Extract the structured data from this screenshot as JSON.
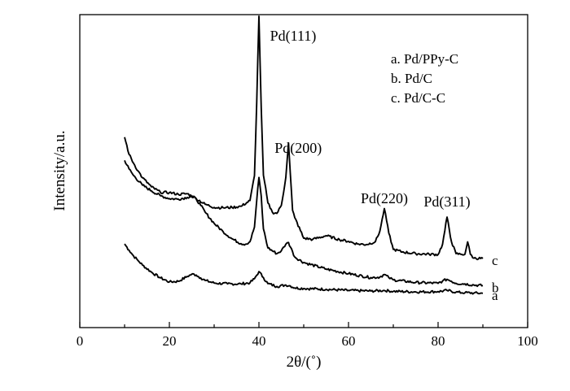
{
  "chart_data": {
    "type": "line",
    "xlabel": "2θ/(˚)",
    "ylabel": "Intensity/a.u.",
    "xlim": [
      0,
      100
    ],
    "ylim": [
      0,
      100
    ],
    "y_axis_ticks": "none",
    "x_ticks": [
      "0",
      "20",
      "40",
      "60",
      "80",
      "100"
    ],
    "legend": {
      "placement": "top-right",
      "entries": [
        "a. Pd/PPy-C",
        "b. Pd/C",
        "c. Pd/C-C"
      ]
    },
    "annotations": [
      {
        "text": "Pd(111)",
        "x": 40.0
      },
      {
        "text": "Pd(200)",
        "x": 46.6
      },
      {
        "text": "Pd(220)",
        "x": 68.0
      },
      {
        "text": "Pd(311)",
        "x": 82.0
      }
    ],
    "series": [
      {
        "name": "a",
        "x": [
          10,
          11,
          12,
          13,
          14,
          16,
          18,
          20,
          22,
          24,
          25,
          26,
          27,
          28,
          30,
          33,
          36,
          38,
          39,
          40,
          41,
          42,
          44,
          46,
          47,
          48,
          50,
          55,
          60,
          65,
          68,
          70,
          75,
          80,
          82,
          84,
          86,
          88,
          90
        ],
        "y": [
          20.2,
          18.0,
          16.0,
          14.4,
          12.8,
          10.3,
          8.3,
          6.9,
          7.1,
          8.8,
          9.6,
          9.3,
          8.3,
          7.4,
          6.5,
          6.2,
          6.2,
          6.6,
          8.0,
          10.5,
          8.4,
          6.3,
          5.3,
          5.8,
          5.5,
          4.8,
          4.6,
          4.3,
          3.9,
          3.7,
          3.9,
          3.6,
          3.4,
          3.5,
          3.9,
          3.3,
          3.1,
          3.0,
          2.9
        ]
      },
      {
        "name": "b",
        "x": [
          10,
          11,
          12,
          14,
          16,
          18,
          20,
          22,
          24,
          25,
          26,
          27,
          28,
          30,
          32,
          34,
          36,
          37,
          38,
          39,
          39.5,
          40,
          40.5,
          41,
          42,
          44,
          45,
          46,
          46.6,
          47.5,
          48,
          50,
          55,
          60,
          65,
          67,
          68,
          69,
          70,
          75,
          80,
          81,
          82,
          83,
          84,
          86,
          88,
          90
        ],
        "y": [
          49.5,
          46.5,
          44.2,
          40.8,
          38.8,
          37.1,
          36.1,
          35.9,
          36.5,
          37.0,
          35.9,
          33.7,
          31.3,
          27.4,
          24.5,
          22.0,
          20.3,
          20.1,
          21.0,
          26.1,
          35.5,
          43.5,
          37.0,
          25.5,
          18.8,
          16.8,
          17.8,
          20.1,
          20.7,
          17.5,
          15.6,
          13.7,
          11.4,
          9.8,
          8.4,
          8.6,
          9.5,
          8.4,
          7.6,
          6.7,
          6.4,
          7.2,
          7.8,
          7.1,
          6.4,
          6.2,
          5.8,
          5.6
        ]
      },
      {
        "name": "c",
        "x": [
          10,
          11,
          12,
          13,
          14,
          16,
          18,
          20,
          22,
          24,
          26,
          28,
          30,
          32,
          34,
          36,
          38,
          39,
          39.5,
          40,
          40.5,
          41,
          42,
          43,
          44,
          45,
          46,
          46.6,
          47,
          47.5,
          48,
          50,
          52,
          55,
          58,
          60,
          62,
          64,
          66,
          67,
          68,
          69,
          70,
          72,
          75,
          78,
          80,
          81,
          82,
          83,
          84,
          85,
          86,
          86.6,
          87.2,
          88,
          90
        ],
        "y": [
          57.6,
          51.6,
          48.5,
          45.8,
          43.4,
          40.2,
          38.3,
          38.2,
          37.6,
          37.8,
          36.1,
          34.1,
          33.0,
          32.9,
          33.0,
          33.4,
          35.4,
          44.1,
          70,
          100,
          68,
          44.3,
          34.6,
          31.3,
          30.9,
          33.7,
          43.5,
          55.6,
          45.0,
          32.0,
          29.4,
          22.2,
          21.8,
          23.1,
          21.7,
          21.1,
          20.2,
          20.0,
          21.0,
          24.7,
          32.6,
          24.0,
          18.3,
          17.4,
          16.8,
          16.6,
          16.5,
          20.1,
          29.6,
          20.9,
          16.8,
          16.6,
          16.6,
          20.9,
          16.6,
          15.2,
          15.1
        ]
      }
    ],
    "series_end_labels": [
      "a",
      "b",
      "c"
    ]
  }
}
